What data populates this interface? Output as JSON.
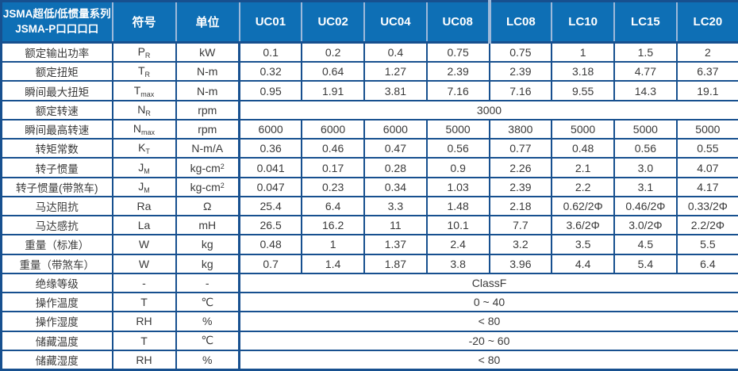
{
  "colors": {
    "header_bg": "#0e6fb5",
    "border": "#17508f",
    "header_separator": "#9db9da",
    "text": "#3a3a3a"
  },
  "table": {
    "header": {
      "title_line1": "JSMA超低/低惯量系列",
      "title_line2": "JSMA-P口口口口",
      "symbol_col": "符号",
      "unit_col": "单位",
      "models": [
        "UC01",
        "UC02",
        "UC04",
        "UC08",
        "LC08",
        "LC10",
        "LC15",
        "LC20"
      ]
    },
    "rows": [
      {
        "label": "额定输出功率",
        "symbol": "P",
        "symbol_sub": "R",
        "unit": "kW",
        "values": [
          "0.1",
          "0.2",
          "0.4",
          "0.75",
          "0.75",
          "1",
          "1.5",
          "2"
        ]
      },
      {
        "label": "额定扭矩",
        "symbol": "T",
        "symbol_sub": "R",
        "unit": "N-m",
        "values": [
          "0.32",
          "0.64",
          "1.27",
          "2.39",
          "2.39",
          "3.18",
          "4.77",
          "6.37"
        ]
      },
      {
        "label": "瞬间最大扭矩",
        "symbol": "T",
        "symbol_sub": "max",
        "unit": "N-m",
        "values": [
          "0.95",
          "1.91",
          "3.81",
          "7.16",
          "7.16",
          "9.55",
          "14.3",
          "19.1"
        ]
      },
      {
        "label": "额定转速",
        "symbol": "N",
        "symbol_sub": "R",
        "unit": "rpm",
        "merged": "3000"
      },
      {
        "label": "瞬间最高转速",
        "symbol": "N",
        "symbol_sub": "max",
        "unit": "rpm",
        "values": [
          "6000",
          "6000",
          "6000",
          "5000",
          "3800",
          "5000",
          "5000",
          "5000"
        ]
      },
      {
        "label": "转矩常数",
        "symbol": "K",
        "symbol_sub": "T",
        "unit": "N-m/A",
        "values": [
          "0.36",
          "0.46",
          "0.47",
          "0.56",
          "0.77",
          "0.48",
          "0.56",
          "0.55"
        ]
      },
      {
        "label": "转子惯量",
        "symbol": "J",
        "symbol_sub": "M",
        "unit": "kg-cm",
        "unit_sup": "2",
        "values": [
          "0.041",
          "0.17",
          "0.28",
          "0.9",
          "2.26",
          "2.1",
          "3.0",
          "4.07"
        ]
      },
      {
        "label": "转子惯量(带煞车)",
        "symbol": "J",
        "symbol_sub": "M",
        "unit": "kg-cm",
        "unit_sup": "2",
        "values": [
          "0.047",
          "0.23",
          "0.34",
          "1.03",
          "2.39",
          "2.2",
          "3.1",
          "4.17"
        ]
      },
      {
        "label": "马达阻抗",
        "symbol": "Ra",
        "unit": "Ω",
        "values": [
          "25.4",
          "6.4",
          "3.3",
          "1.48",
          "2.18",
          "0.62/2Φ",
          "0.46/2Φ",
          "0.33/2Φ"
        ]
      },
      {
        "label": "马达感抗",
        "symbol": "La",
        "unit": "mH",
        "values": [
          "26.5",
          "16.2",
          "11",
          "10.1",
          "7.7",
          "3.6/2Φ",
          "3.0/2Φ",
          "2.2/2Φ"
        ]
      },
      {
        "label": "重量（标准）",
        "symbol": "W",
        "unit": "kg",
        "values": [
          "0.48",
          "1",
          "1.37",
          "2.4",
          "3.2",
          "3.5",
          "4.5",
          "5.5"
        ]
      },
      {
        "label": "重量（带煞车）",
        "symbol": "W",
        "unit": "kg",
        "values": [
          "0.7",
          "1.4",
          "1.87",
          "3.8",
          "3.96",
          "4.4",
          "5.4",
          "6.4"
        ]
      },
      {
        "label": "绝缘等级",
        "symbol": "-",
        "unit": "-",
        "merged": "ClassF"
      },
      {
        "label": "操作温度",
        "symbol": "T",
        "unit": "℃",
        "merged": "0 ~ 40"
      },
      {
        "label": "操作湿度",
        "symbol": "RH",
        "unit": "%",
        "merged": "< 80"
      },
      {
        "label": "储藏温度",
        "symbol": "T",
        "unit": "℃",
        "merged": "-20 ~ 60"
      },
      {
        "label": "储藏湿度",
        "symbol": "RH",
        "unit": "%",
        "merged": "< 80"
      }
    ]
  }
}
